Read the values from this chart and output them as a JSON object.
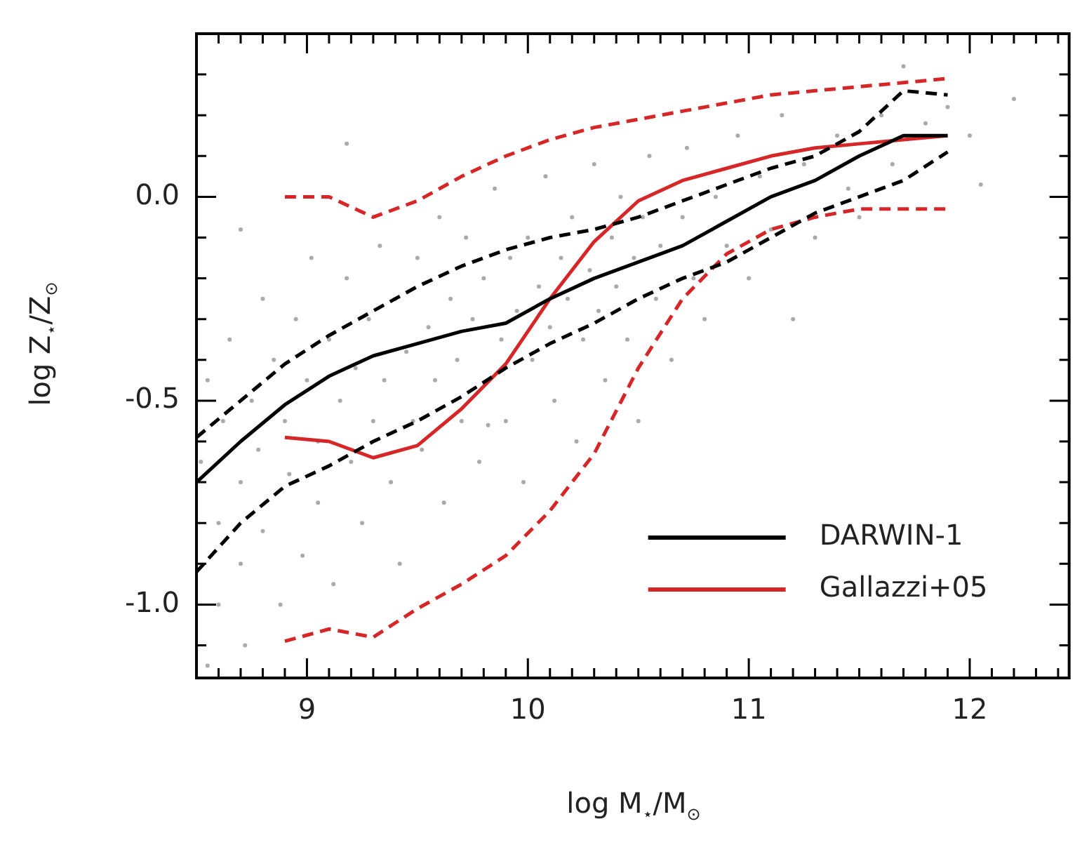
{
  "chart_data": {
    "type": "line",
    "xlabel": "log M$_{⋆}$/M$_{⊙}$",
    "ylabel": "log Z$_{⋆}$/Z$_{⊙}$",
    "xlim": [
      8.5,
      12.45
    ],
    "ylim": [
      -1.18,
      0.4
    ],
    "xticks": [
      {
        "value": 8.5,
        "label": null
      },
      {
        "value": 8.6,
        "label": null
      },
      {
        "value": 8.7,
        "label": null
      },
      {
        "value": 8.8,
        "label": null
      },
      {
        "value": 8.9,
        "label": null
      },
      9,
      {
        "value": 9.1,
        "label": null
      },
      {
        "value": 9.2,
        "label": null
      },
      {
        "value": 9.3,
        "label": null
      },
      {
        "value": 9.4,
        "label": null
      },
      {
        "value": 9.5,
        "label": null
      },
      {
        "value": 9.6,
        "label": null
      },
      {
        "value": 9.7,
        "label": null
      },
      {
        "value": 9.8,
        "label": null
      },
      {
        "value": 9.9,
        "label": null
      },
      10,
      {
        "value": 10.1,
        "label": null
      },
      {
        "value": 10.2,
        "label": null
      },
      {
        "value": 10.3,
        "label": null
      },
      {
        "value": 10.4,
        "label": null
      },
      {
        "value": 10.5,
        "label": null
      },
      {
        "value": 10.6,
        "label": null
      },
      {
        "value": 10.7,
        "label": null
      },
      {
        "value": 10.8,
        "label": null
      },
      {
        "value": 10.9,
        "label": null
      },
      11,
      {
        "value": 11.1,
        "label": null
      },
      {
        "value": 11.2,
        "label": null
      },
      {
        "value": 11.3,
        "label": null
      },
      {
        "value": 11.4,
        "label": null
      },
      {
        "value": 11.5,
        "label": null
      },
      {
        "value": 11.6,
        "label": null
      },
      {
        "value": 11.7,
        "label": null
      },
      {
        "value": 11.8,
        "label": null
      },
      {
        "value": 11.9,
        "label": null
      },
      12,
      {
        "value": 12.1,
        "label": null
      },
      {
        "value": 12.2,
        "label": null
      },
      {
        "value": 12.3,
        "label": null
      },
      {
        "value": 12.4,
        "label": null
      }
    ],
    "yticks": [
      {
        "value": -1.1,
        "label": null
      },
      {
        "value": -1.0,
        "label": "-1.0"
      },
      {
        "value": -0.9,
        "label": null
      },
      {
        "value": -0.8,
        "label": null
      },
      {
        "value": -0.7,
        "label": null
      },
      {
        "value": -0.6,
        "label": null
      },
      {
        "value": -0.5,
        "label": "-0.5"
      },
      {
        "value": -0.4,
        "label": null
      },
      {
        "value": -0.3,
        "label": null
      },
      {
        "value": -0.2,
        "label": null
      },
      {
        "value": -0.1,
        "label": null
      },
      {
        "value": 0,
        "label": "0.0"
      },
      {
        "value": 0.1,
        "label": null
      },
      {
        "value": 0.2,
        "label": null
      },
      {
        "value": 0.3,
        "label": null
      }
    ],
    "grid": false,
    "legend": "bottom right",
    "series": [
      {
        "type": "scatter",
        "color": "#aaaaaa",
        "marker": "circle",
        "x": [
          8.52,
          8.55,
          8.55,
          8.6,
          8.6,
          8.62,
          8.65,
          8.7,
          8.7,
          8.72,
          8.75,
          8.78,
          8.8,
          8.8,
          8.85,
          8.88,
          8.9,
          8.92,
          8.95,
          8.98,
          9.0,
          9.02,
          9.05,
          9.05,
          9.1,
          9.12,
          9.15,
          9.18,
          9.2,
          9.22,
          9.25,
          9.28,
          9.3,
          9.33,
          9.35,
          9.38,
          9.4,
          9.42,
          9.45,
          9.48,
          9.5,
          9.52,
          9.55,
          9.58,
          9.6,
          9.62,
          9.65,
          9.68,
          9.7,
          9.72,
          9.75,
          9.78,
          9.8,
          9.82,
          9.85,
          9.88,
          9.9,
          9.92,
          9.95,
          9.98,
          10.0,
          10.02,
          10.05,
          10.08,
          10.1,
          10.12,
          10.15,
          10.18,
          10.2,
          10.22,
          10.25,
          10.28,
          10.3,
          10.32,
          10.35,
          10.38,
          10.4,
          10.42,
          10.45,
          10.48,
          10.5,
          10.52,
          10.55,
          10.58,
          10.6,
          10.65,
          10.7,
          10.72,
          10.75,
          10.8,
          10.85,
          10.9,
          10.95,
          11.0,
          11.05,
          11.1,
          11.15,
          11.2,
          11.25,
          11.3,
          11.4,
          11.45,
          11.5,
          11.6,
          11.65,
          11.7,
          11.8,
          11.9,
          12.0,
          12.05,
          12.2,
          9.18,
          8.7
        ],
        "values": [
          -0.65,
          -1.15,
          -0.45,
          -0.8,
          -1.0,
          -0.55,
          -0.35,
          -0.7,
          -0.9,
          -1.1,
          -0.5,
          -0.62,
          -0.25,
          -0.82,
          -0.4,
          -1.0,
          -0.55,
          -0.68,
          -0.3,
          -0.88,
          -0.45,
          -0.15,
          -0.6,
          -0.75,
          -0.35,
          -0.95,
          -0.5,
          -0.2,
          -0.65,
          -0.42,
          -0.8,
          -0.3,
          -0.55,
          -0.12,
          -0.45,
          -0.7,
          -0.25,
          -0.9,
          -0.38,
          -0.55,
          -0.15,
          -0.62,
          -0.32,
          -0.45,
          -0.05,
          -0.75,
          -0.25,
          -0.4,
          -0.55,
          -0.1,
          -0.3,
          -0.65,
          -0.2,
          -0.56,
          0.02,
          -0.35,
          -0.55,
          -0.15,
          -0.28,
          -0.7,
          -0.1,
          -0.4,
          -0.22,
          0.05,
          -0.32,
          -0.5,
          -0.15,
          -0.25,
          -0.05,
          -0.6,
          -0.35,
          -0.18,
          0.08,
          -0.28,
          -0.45,
          -0.1,
          -0.22,
          0.0,
          -0.35,
          -0.15,
          -0.55,
          -0.05,
          0.1,
          -0.25,
          -0.12,
          -0.4,
          -0.05,
          0.12,
          -0.2,
          -0.3,
          0.0,
          -0.12,
          0.15,
          -0.2,
          0.05,
          -0.08,
          0.2,
          -0.3,
          0.08,
          -0.1,
          0.15,
          0.02,
          -0.05,
          0.2,
          0.08,
          0.32,
          0.18,
          0.22,
          0.15,
          0.03,
          0.24,
          0.13,
          -0.08
        ]
      },
      {
        "name": "DARWIN-1",
        "color": "#000000",
        "line_style": "solid",
        "x": [
          8.5,
          8.7,
          8.9,
          9.1,
          9.3,
          9.5,
          9.7,
          9.9,
          10.1,
          10.3,
          10.5,
          10.7,
          10.9,
          11.1,
          11.3,
          11.5,
          11.7,
          11.9
        ],
        "values": [
          -0.7,
          -0.6,
          -0.51,
          -0.44,
          -0.39,
          -0.36,
          -0.33,
          -0.31,
          -0.25,
          -0.2,
          -0.16,
          -0.12,
          -0.06,
          0.0,
          0.04,
          0.1,
          0.15,
          0.15
        ]
      },
      {
        "color": "#000000",
        "line_style": "dashed",
        "x": [
          8.5,
          8.7,
          8.9,
          9.1,
          9.3,
          9.5,
          9.7,
          9.9,
          10.1,
          10.3,
          10.5,
          10.7,
          10.9,
          11.1,
          11.3,
          11.5,
          11.7,
          11.9
        ],
        "values": [
          -0.59,
          -0.5,
          -0.41,
          -0.34,
          -0.28,
          -0.22,
          -0.17,
          -0.13,
          -0.1,
          -0.08,
          -0.05,
          -0.01,
          0.03,
          0.07,
          0.1,
          0.16,
          0.26,
          0.25
        ]
      },
      {
        "color": "#000000",
        "line_style": "dashed",
        "x": [
          8.5,
          8.7,
          8.9,
          9.1,
          9.3,
          9.5,
          9.7,
          9.9,
          10.1,
          10.3,
          10.5,
          10.7,
          10.9,
          11.1,
          11.3,
          11.5,
          11.7,
          11.9
        ],
        "values": [
          -0.92,
          -0.8,
          -0.71,
          -0.66,
          -0.6,
          -0.55,
          -0.49,
          -0.42,
          -0.36,
          -0.31,
          -0.25,
          -0.2,
          -0.16,
          -0.1,
          -0.04,
          0.0,
          0.04,
          0.11
        ]
      },
      {
        "name": "Gallazzi+05",
        "color": "#d62728",
        "line_style": "solid",
        "x": [
          8.9,
          9.1,
          9.3,
          9.5,
          9.7,
          9.9,
          10.1,
          10.3,
          10.5,
          10.7,
          10.9,
          11.1,
          11.3,
          11.5,
          11.7,
          11.9
        ],
        "values": [
          -0.59,
          -0.6,
          -0.64,
          -0.61,
          -0.52,
          -0.41,
          -0.25,
          -0.11,
          -0.01,
          0.04,
          0.07,
          0.1,
          0.12,
          0.13,
          0.14,
          0.15
        ]
      },
      {
        "color": "#d62728",
        "line_style": "dashed",
        "x": [
          8.9,
          9.1,
          9.3,
          9.5,
          9.7,
          9.9,
          10.1,
          10.3,
          10.5,
          10.7,
          10.9,
          11.1,
          11.3,
          11.5,
          11.7,
          11.9
        ],
        "values": [
          0.0,
          0.0,
          -0.05,
          -0.01,
          0.05,
          0.1,
          0.14,
          0.17,
          0.19,
          0.21,
          0.23,
          0.25,
          0.26,
          0.27,
          0.28,
          0.29
        ]
      },
      {
        "color": "#d62728",
        "line_style": "dashed",
        "x": [
          8.9,
          9.1,
          9.3,
          9.5,
          9.7,
          9.9,
          10.1,
          10.3,
          10.5,
          10.7,
          10.9,
          11.1,
          11.3,
          11.5,
          11.7,
          11.9
        ],
        "values": [
          -1.09,
          -1.06,
          -1.08,
          -1.01,
          -0.95,
          -0.88,
          -0.77,
          -0.63,
          -0.42,
          -0.25,
          -0.14,
          -0.08,
          -0.05,
          -0.03,
          -0.03,
          -0.03
        ]
      }
    ]
  }
}
